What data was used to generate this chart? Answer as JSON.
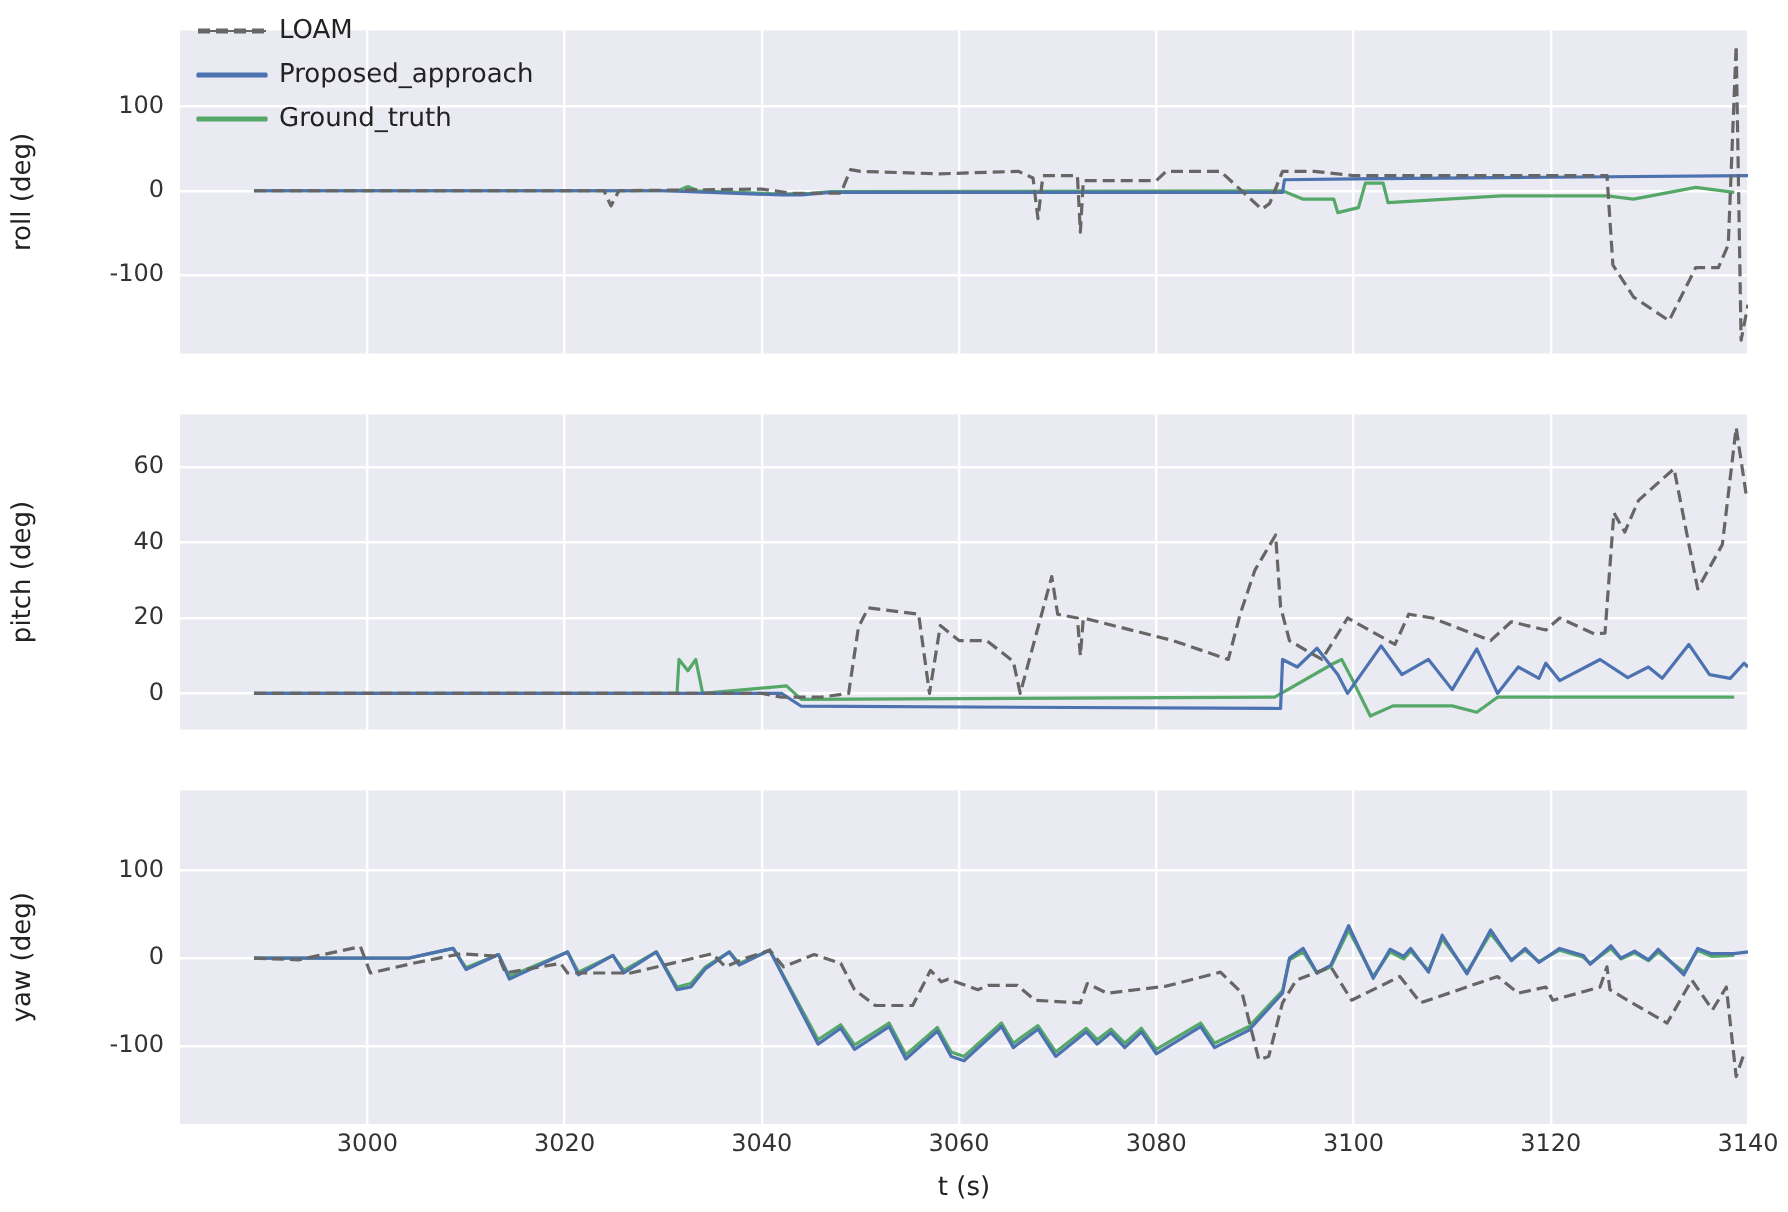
{
  "chart_data": [
    {
      "type": "line",
      "ylabel": "roll (deg)",
      "xlim": [
        2981,
        3140
      ],
      "xticks": [
        3000,
        3020,
        3040,
        3060,
        3080,
        3100,
        3120,
        3140
      ],
      "ylim": [
        -193,
        190
      ],
      "yticks": [
        -100,
        0,
        100
      ],
      "grid": true,
      "legend": "top left",
      "tick_labels": "y",
      "marker": "none",
      "series": [
        {
          "name": "LOAM",
          "color": "#666666",
          "line_style": "dashed",
          "x": [
            2988.5,
            3010,
            3024,
            3024.7,
            3025.5,
            3040,
            3043,
            3048,
            3049,
            3050,
            3058,
            3066,
            3067.5,
            3068,
            3068.5,
            3072,
            3072.3,
            3072.6,
            3080,
            3081,
            3086.5,
            3090.7,
            3091.5,
            3092.8,
            3096,
            3100,
            3110,
            3125.7,
            3126.3,
            3128.4,
            3132,
            3134.7,
            3137,
            3138,
            3138.8,
            3139.3,
            3140
          ],
          "values": [
            0,
            0,
            0,
            -18,
            0,
            2,
            -3,
            -3,
            25,
            23,
            20,
            23,
            15,
            -33,
            18,
            18,
            -49,
            12,
            12,
            23,
            23,
            -22,
            -15,
            23,
            23,
            18,
            18,
            18,
            -88,
            -126,
            -154,
            -91,
            -91,
            -64,
            172,
            -177,
            -135
          ]
        },
        {
          "name": "Proposed_approach",
          "color": "#4c72b0",
          "line_style": "solid",
          "x": [
            2988.5,
            3030,
            3042,
            3044,
            3047,
            3060,
            3092.8,
            3093,
            3100,
            3120,
            3140
          ],
          "values": [
            0,
            0,
            -5,
            -5,
            -2,
            -2,
            -2,
            13,
            14,
            16,
            18
          ]
        },
        {
          "name": "Ground_truth",
          "color": "#55a868",
          "line_style": "solid",
          "x": [
            2988.5,
            3020,
            3031.5,
            3032.5,
            3033.5,
            3042,
            3045,
            3047,
            3092.8,
            3094.9,
            3098,
            3098.4,
            3100.5,
            3101.2,
            3103,
            3103.5,
            3115,
            3125.7,
            3128.4,
            3134.7,
            3138.6
          ],
          "values": [
            0,
            0,
            0,
            5,
            0,
            -4,
            -3,
            -1,
            0,
            -10,
            -10,
            -26,
            -20,
            9,
            9,
            -14,
            -6,
            -6,
            -10,
            4,
            -2
          ]
        }
      ]
    },
    {
      "type": "line",
      "ylabel": "pitch (deg)",
      "xlim": [
        2981,
        3140
      ],
      "xticks": [
        3000,
        3020,
        3040,
        3060,
        3080,
        3100,
        3120,
        3140
      ],
      "ylim": [
        -9.6,
        74
      ],
      "yticks": [
        0,
        20,
        40,
        60
      ],
      "grid": true,
      "tick_labels": "y",
      "marker": "none",
      "series": [
        {
          "color": "#666666",
          "line_style": "dashed",
          "x": [
            2988.5,
            3040,
            3042,
            3046,
            3048.8,
            3049.8,
            3050.8,
            3055.9,
            3057,
            3058.1,
            3060,
            3062.8,
            3065.5,
            3066.2,
            3069.4,
            3070,
            3072,
            3072.3,
            3072.6,
            3081.7,
            3087.3,
            3088.5,
            3090,
            3092.1,
            3092.6,
            3093.5,
            3096.8,
            3099.4,
            3104.2,
            3105.6,
            3108,
            3113.9,
            3116,
            3119.5,
            3120.9,
            3124.4,
            3125.5,
            3126.4,
            3127.5,
            3128.9,
            3132.5,
            3134.9,
            3137.4,
            3138.8,
            3139.8
          ],
          "values": [
            0,
            0,
            -1,
            -1,
            0,
            17.6,
            22.7,
            21,
            0,
            18,
            14,
            14,
            8.5,
            0,
            31,
            21,
            20,
            10,
            20,
            14,
            9,
            21,
            32.7,
            42,
            23,
            14,
            9,
            20,
            13,
            21,
            20,
            14,
            19,
            16.8,
            20,
            15.8,
            16,
            47.9,
            42.8,
            51.2,
            59.6,
            27.7,
            39.5,
            70.5,
            53
          ]
        },
        {
          "color": "#4c72b0",
          "line_style": "solid",
          "x": [
            2988.5,
            3042,
            3044,
            3092.6,
            3092.8,
            3094.3,
            3096.3,
            3098.4,
            3099.4,
            3102.8,
            3104.9,
            3107.6,
            3110,
            3112.5,
            3114.6,
            3116.7,
            3118.8,
            3119.5,
            3120.9,
            3125,
            3127.8,
            3129.9,
            3131.3,
            3134,
            3136.1,
            3138.2,
            3139.6,
            3140
          ],
          "values": [
            0,
            0,
            -3.4,
            -4,
            9,
            7,
            12,
            5,
            0,
            12.6,
            5,
            9,
            1,
            11.8,
            0,
            7,
            4,
            8,
            3.4,
            9,
            4.2,
            7,
            4,
            13,
            5,
            4,
            8,
            7
          ]
        },
        {
          "color": "#55a868",
          "line_style": "solid",
          "x": [
            2988.5,
            3031.4,
            3031.6,
            3032.5,
            3033.3,
            3034,
            3042.5,
            3044,
            3092,
            3098,
            3098.8,
            3100,
            3101.7,
            3104,
            3110,
            3112.5,
            3114.6,
            3138.6
          ],
          "values": [
            0,
            0,
            9,
            6,
            9,
            0,
            2,
            -1.6,
            -1,
            8,
            9,
            3,
            -6,
            -3.3,
            -3.3,
            -5,
            -1,
            -1
          ]
        }
      ]
    },
    {
      "type": "line",
      "xlabel": "t (s)",
      "ylabel": "yaw (deg)",
      "xlim": [
        2981,
        3140
      ],
      "xticks": [
        3000,
        3020,
        3040,
        3060,
        3080,
        3100,
        3120,
        3140
      ],
      "ylim": [
        -189,
        191
      ],
      "yticks": [
        -100,
        0,
        100
      ],
      "grid": true,
      "marker": "none",
      "series": [
        {
          "color": "#666666",
          "line_style": "dashed",
          "x": [
            2988.5,
            2993,
            2999.3,
            3000.3,
            3004.6,
            3009.5,
            3013.3,
            3014,
            3019.6,
            3020.3,
            3026.7,
            3035,
            3036.3,
            3038.4,
            3040.8,
            3042.2,
            3045.3,
            3048,
            3049.4,
            3051.5,
            3055.3,
            3057.1,
            3058.2,
            3058.9,
            3061.9,
            3063,
            3065.9,
            3067.7,
            3072.3,
            3073,
            3075,
            3081,
            3086.5,
            3088.7,
            3090.4,
            3091.4,
            3092.8,
            3094.2,
            3097.7,
            3099.8,
            3104.7,
            3106.8,
            3114.6,
            3116.7,
            3119.5,
            3120.2,
            3125,
            3125.7,
            3126,
            3127.8,
            3131.8,
            3134.3,
            3136.4,
            3137.8,
            3138.8,
            3139.5
          ],
          "values": [
            0,
            -2,
            13,
            -17,
            -6,
            5,
            2,
            -17,
            -6,
            -17,
            -17,
            5,
            -10,
            0,
            9,
            -10,
            4,
            -6,
            -36,
            -54,
            -54,
            -14,
            -27,
            -24,
            -36,
            -31,
            -31,
            -48,
            -51,
            -29,
            -40,
            -32,
            -16,
            -40,
            -116,
            -112,
            -51,
            -25,
            -10,
            -48,
            -21,
            -51,
            -21,
            -40,
            -33,
            -48,
            -33,
            -10,
            -36,
            -48,
            -74,
            -25,
            -59,
            -33,
            -135,
            -112
          ]
        },
        {
          "color": "#4c72b0",
          "line_style": "solid",
          "x": [
            2988.5,
            3004.2,
            3008.7,
            3010,
            3013.3,
            3014.4,
            3020.3,
            3021.4,
            3024.9,
            3026,
            3029.3,
            3031.4,
            3032.8,
            3034.3,
            3036.7,
            3037.7,
            3040.8,
            3045.7,
            3048,
            3049.4,
            3052.9,
            3054.6,
            3057.8,
            3059.2,
            3060.5,
            3064.3,
            3065.5,
            3068,
            3069.8,
            3072.9,
            3074,
            3075.4,
            3076.8,
            3078.5,
            3080,
            3084.5,
            3085.9,
            3089.4,
            3092.8,
            3093.5,
            3094.9,
            3096.3,
            3097.7,
            3099.5,
            3102,
            3103.7,
            3105.1,
            3105.8,
            3107.6,
            3109,
            3111.5,
            3113.9,
            3116,
            3117.4,
            3118.8,
            3120.9,
            3123.3,
            3124,
            3126.1,
            3127.1,
            3128.5,
            3129.9,
            3130.9,
            3133.5,
            3134.9,
            3136.3,
            3138.6,
            3140
          ],
          "values": [
            0,
            0,
            11,
            -13,
            4,
            -24,
            7,
            -19,
            3,
            -17,
            7,
            -36,
            -33,
            -12,
            7,
            -8,
            9,
            -98,
            -80,
            -104,
            -78,
            -115,
            -83,
            -112,
            -117,
            -78,
            -102,
            -81,
            -112,
            -84,
            -98,
            -85,
            -102,
            -84,
            -109,
            -78,
            -102,
            -82,
            -40,
            0,
            11,
            -17,
            -8,
            37,
            -23,
            10,
            2,
            11,
            -16,
            26,
            -18,
            32,
            -3,
            11,
            -5,
            11,
            3,
            -7,
            14,
            0,
            8,
            -2,
            10,
            -19,
            11,
            5,
            5,
            7
          ]
        },
        {
          "color": "#55a868",
          "line_style": "solid",
          "x": [
            2988.5,
            3004.2,
            3008.7,
            3010,
            3013.3,
            3014.4,
            3020.3,
            3021.4,
            3024.9,
            3026,
            3029.3,
            3031.4,
            3032.8,
            3034.3,
            3036.7,
            3037.7,
            3040.8,
            3045.7,
            3048,
            3049.4,
            3052.9,
            3054.6,
            3057.8,
            3059.2,
            3060.5,
            3064.3,
            3065.5,
            3068,
            3069.8,
            3072.9,
            3074,
            3075.4,
            3076.8,
            3078.5,
            3080,
            3084.5,
            3085.9,
            3089.4,
            3092.8,
            3093.5,
            3094.9,
            3096.3,
            3097.7,
            3099.5,
            3102,
            3103.7,
            3105.1,
            3105.8,
            3107.6,
            3109,
            3111.5,
            3113.9,
            3116,
            3117.4,
            3118.8,
            3120.9,
            3123.3,
            3124,
            3126.1,
            3127.1,
            3128.5,
            3129.9,
            3130.9,
            3133.5,
            3134.9,
            3136.3,
            3138.6
          ],
          "values": [
            0,
            0,
            11,
            -11,
            4,
            -21,
            7,
            -16,
            3,
            -14,
            7,
            -33,
            -29,
            -10,
            7,
            -6,
            9,
            -93,
            -76,
            -99,
            -74,
            -110,
            -79,
            -107,
            -112,
            -74,
            -97,
            -77,
            -107,
            -80,
            -93,
            -81,
            -97,
            -80,
            -104,
            -74,
            -97,
            -78,
            -37,
            -2,
            7,
            -17,
            -10,
            32,
            -21,
            7,
            -1,
            8,
            -14,
            22,
            -16,
            28,
            -2,
            9,
            -4,
            9,
            1,
            -6,
            11,
            -1,
            6,
            -3,
            7,
            -16,
            9,
            2,
            3
          ]
        }
      ]
    }
  ]
}
